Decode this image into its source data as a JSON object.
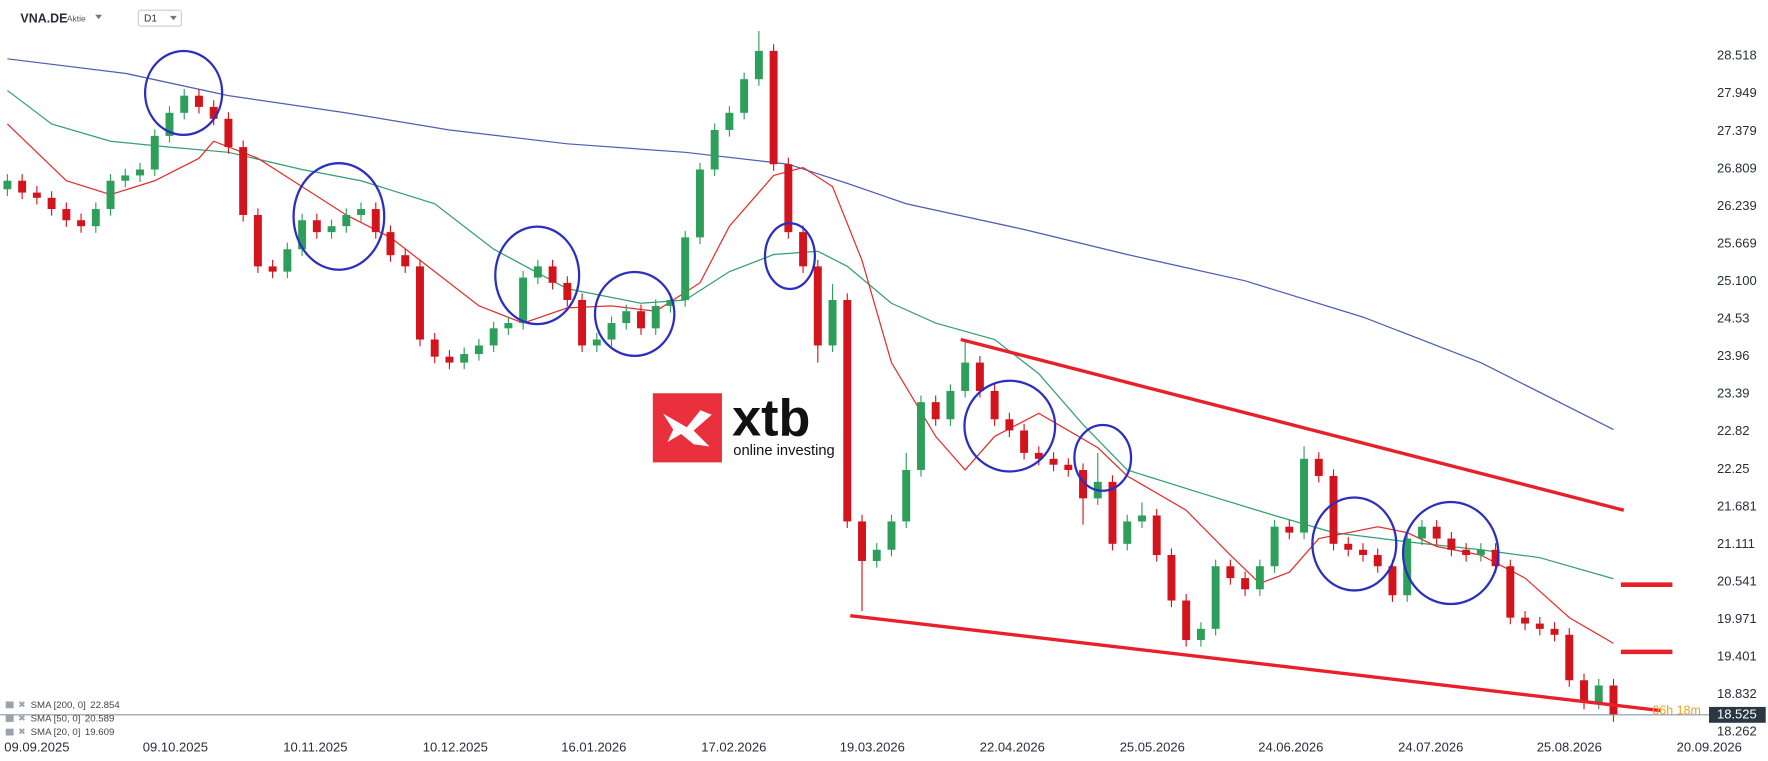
{
  "header": {
    "symbol": "VNA.DE",
    "kind": "Aktie",
    "timeframe": "D1"
  },
  "logo": {
    "brand": "xtb",
    "tagline": "online investing"
  },
  "chart_data": {
    "type": "candlestick",
    "colors": {
      "up": "#2e9e5b",
      "down": "#d3141d"
    },
    "open": [
      26.5,
      26.63,
      26.45,
      26.37,
      26.2,
      26.03,
      25.94,
      26.2,
      26.63,
      26.71,
      26.8,
      27.31,
      27.66,
      27.92,
      27.75,
      27.57,
      27.14,
      26.11,
      25.33,
      25.25,
      25.59,
      26.03,
      25.85,
      25.94,
      26.11,
      26.2,
      25.85,
      25.5,
      25.33,
      24.22,
      23.96,
      23.87,
      24.0,
      24.13,
      24.39,
      24.47,
      25.16,
      25.33,
      25.08,
      24.82,
      24.13,
      24.22,
      24.47,
      24.65,
      24.39,
      24.73,
      24.82,
      25.77,
      26.8,
      27.4,
      27.66,
      28.17,
      28.6,
      26.88,
      25.85,
      25.33,
      24.13,
      24.82,
      21.46,
      20.86,
      21.03,
      21.46,
      22.24,
      23.27,
      23.01,
      23.44,
      23.87,
      23.44,
      23.01,
      22.84,
      22.5,
      22.41,
      22.32,
      22.24,
      21.81,
      22.06,
      21.12,
      21.46,
      21.55,
      20.95,
      20.26,
      19.66,
      19.83,
      20.78,
      20.6,
      20.43,
      20.78,
      21.38,
      21.29,
      22.41,
      22.15,
      21.12,
      21.03,
      20.95,
      20.78,
      20.34,
      21.2,
      21.38,
      21.2,
      21.03,
      20.95,
      21.03,
      20.78,
      20.0,
      19.91,
      19.83,
      19.74,
      19.05,
      18.71,
      18.97
    ],
    "high": [
      26.73,
      26.73,
      26.55,
      26.47,
      26.3,
      26.13,
      26.3,
      26.73,
      26.81,
      26.9,
      27.41,
      27.76,
      28.02,
      28.02,
      27.85,
      27.67,
      27.24,
      26.21,
      25.43,
      25.69,
      26.13,
      26.13,
      26.04,
      26.21,
      26.3,
      26.3,
      25.95,
      25.6,
      25.43,
      24.32,
      24.06,
      24.1,
      24.23,
      24.49,
      24.57,
      25.26,
      25.43,
      25.43,
      25.18,
      24.92,
      24.32,
      24.57,
      24.75,
      24.75,
      24.83,
      24.92,
      25.87,
      26.9,
      27.5,
      27.76,
      28.27,
      28.9,
      28.7,
      26.98,
      25.95,
      25.43,
      25.06,
      24.92,
      21.56,
      21.13,
      21.56,
      22.5,
      23.37,
      23.37,
      23.54,
      24.2,
      23.97,
      23.54,
      23.11,
      22.94,
      22.6,
      22.51,
      22.42,
      22.34,
      22.5,
      22.16,
      21.56,
      21.75,
      21.65,
      21.05,
      20.36,
      19.93,
      20.88,
      20.88,
      20.7,
      20.88,
      21.48,
      21.48,
      22.6,
      22.51,
      22.25,
      21.22,
      21.13,
      21.05,
      20.88,
      21.3,
      21.48,
      21.48,
      21.3,
      21.13,
      21.13,
      21.13,
      20.88,
      20.1,
      20.01,
      19.93,
      19.84,
      19.15,
      19.07,
      19.07
    ],
    "low": [
      26.4,
      26.35,
      26.27,
      26.1,
      25.93,
      25.84,
      25.84,
      26.1,
      26.53,
      26.61,
      26.7,
      27.21,
      27.56,
      27.65,
      27.47,
      27.04,
      26.01,
      25.23,
      25.15,
      25.15,
      25.49,
      25.75,
      25.75,
      25.84,
      26.01,
      25.75,
      25.4,
      25.23,
      24.12,
      23.86,
      23.77,
      23.77,
      23.9,
      24.03,
      24.29,
      24.37,
      25.06,
      24.98,
      24.72,
      24.03,
      24.03,
      24.12,
      24.37,
      24.29,
      24.29,
      24.63,
      24.72,
      25.67,
      26.7,
      27.3,
      27.56,
      28.07,
      26.78,
      25.75,
      25.23,
      23.87,
      24.03,
      21.36,
      20.1,
      20.76,
      20.93,
      21.36,
      22.14,
      22.91,
      22.91,
      23.34,
      23.34,
      22.91,
      22.74,
      22.4,
      22.31,
      22.22,
      22.14,
      21.41,
      21.71,
      21.02,
      21.02,
      21.36,
      20.85,
      20.16,
      19.56,
      19.56,
      19.73,
      20.5,
      20.33,
      20.33,
      20.68,
      21.19,
      21.19,
      22.05,
      21.02,
      20.93,
      20.85,
      20.68,
      20.24,
      20.24,
      21.1,
      21.1,
      20.93,
      20.85,
      20.85,
      20.68,
      19.9,
      19.81,
      19.73,
      19.64,
      18.95,
      18.61,
      18.61,
      18.42
    ],
    "close": [
      26.63,
      26.45,
      26.37,
      26.2,
      26.03,
      25.94,
      26.2,
      26.63,
      26.71,
      26.8,
      27.31,
      27.66,
      27.92,
      27.75,
      27.57,
      27.14,
      26.11,
      25.33,
      25.25,
      25.59,
      26.03,
      25.85,
      25.94,
      26.11,
      26.2,
      25.85,
      25.5,
      25.33,
      24.22,
      23.96,
      23.87,
      24.0,
      24.13,
      24.39,
      24.47,
      25.16,
      25.33,
      25.08,
      24.82,
      24.13,
      24.22,
      24.47,
      24.65,
      24.39,
      24.73,
      24.82,
      25.77,
      26.8,
      27.4,
      27.66,
      28.17,
      28.6,
      26.88,
      25.85,
      25.33,
      24.13,
      24.82,
      21.46,
      20.86,
      21.03,
      21.46,
      22.24,
      23.27,
      23.01,
      23.44,
      23.87,
      23.44,
      23.01,
      22.84,
      22.5,
      22.41,
      22.32,
      22.24,
      21.81,
      22.06,
      21.12,
      21.46,
      21.55,
      20.95,
      20.26,
      19.66,
      19.83,
      20.78,
      20.6,
      20.43,
      20.78,
      21.38,
      21.29,
      22.41,
      22.15,
      21.12,
      21.03,
      20.95,
      20.78,
      20.34,
      21.2,
      21.38,
      21.2,
      21.03,
      20.95,
      21.03,
      20.78,
      20.0,
      19.91,
      19.83,
      19.74,
      19.05,
      18.71,
      18.97,
      18.525
    ],
    "xlim": [
      -0.5,
      116.1
    ],
    "ylim": [
      18.16,
      29.2
    ],
    "xticks": [
      {
        "value": 2.0,
        "label": "09.09.2025"
      },
      {
        "value": 11.4,
        "label": "09.10.2025"
      },
      {
        "value": 20.9,
        "label": "10.11.2025"
      },
      {
        "value": 30.4,
        "label": "10.12.2025"
      },
      {
        "value": 39.8,
        "label": "16.01.2026"
      },
      {
        "value": 49.3,
        "label": "17.02.2026"
      },
      {
        "value": 58.7,
        "label": "19.03.2026"
      },
      {
        "value": 68.2,
        "label": "22.04.2026"
      },
      {
        "value": 77.7,
        "label": "25.05.2026"
      },
      {
        "value": 87.1,
        "label": "24.06.2026"
      },
      {
        "value": 96.6,
        "label": "24.07.2026"
      },
      {
        "value": 106.0,
        "label": "25.08.2026"
      },
      {
        "value": 115.5,
        "label": "20.09.2026"
      }
    ],
    "yticks": [
      28.518,
      27.949,
      27.379,
      26.809,
      26.239,
      25.669,
      {
        "value": 25.1,
        "label": "25.100"
      },
      24.53,
      23.96,
      23.39,
      22.82,
      22.25,
      21.681,
      21.111,
      20.541,
      19.971,
      19.401,
      18.832,
      18.262
    ],
    "indicators": [
      {
        "name": "SMA [200, 0]",
        "last": 22.854,
        "color": "#4f5fb0",
        "x": [
          0,
          8,
          15,
          23,
          30,
          38,
          46,
          53,
          57,
          61,
          69,
          76,
          84,
          92,
          100,
          109
        ],
        "values": [
          28.48,
          28.26,
          27.92,
          27.66,
          27.4,
          27.19,
          27.06,
          26.88,
          26.59,
          26.28,
          25.89,
          25.51,
          25.11,
          24.56,
          23.87,
          22.854
        ]
      },
      {
        "name": "SMA [50, 0]",
        "last": 20.589,
        "color": "#33a070",
        "x": [
          0,
          3,
          7,
          11,
          15,
          20,
          24,
          29,
          33,
          38,
          43,
          46,
          49,
          52,
          55,
          57,
          60,
          63,
          67,
          70,
          73,
          76,
          81,
          86,
          90,
          95,
          100,
          104,
          109
        ],
        "values": [
          28.0,
          27.49,
          27.23,
          27.14,
          27.06,
          26.8,
          26.63,
          26.28,
          25.59,
          24.99,
          24.77,
          24.82,
          25.25,
          25.51,
          25.56,
          25.33,
          24.77,
          24.47,
          24.22,
          23.7,
          22.93,
          22.24,
          21.89,
          21.55,
          21.29,
          21.15,
          21.03,
          20.91,
          20.589
        ]
      },
      {
        "name": "SMA [20, 0]",
        "last": 19.609,
        "color": "#e2302c",
        "x": [
          0,
          4,
          7,
          10,
          13,
          14,
          17,
          20,
          23,
          26,
          29,
          32,
          35,
          38,
          41,
          44,
          47,
          49,
          52,
          54,
          56,
          58,
          60,
          63,
          65,
          67,
          70,
          72,
          74,
          76,
          80,
          83,
          85,
          87,
          89,
          93,
          95,
          97,
          100,
          103,
          106,
          109
        ],
        "values": [
          27.49,
          26.63,
          26.42,
          26.63,
          26.97,
          27.23,
          26.97,
          26.54,
          26.11,
          25.77,
          25.25,
          24.73,
          24.47,
          24.7,
          24.73,
          24.65,
          25.08,
          25.94,
          26.71,
          26.83,
          26.54,
          25.42,
          23.87,
          22.75,
          22.24,
          22.75,
          23.1,
          22.84,
          22.58,
          22.15,
          21.63,
          20.95,
          20.52,
          20.69,
          21.2,
          21.38,
          21.29,
          21.08,
          20.95,
          20.6,
          20.0,
          19.609
        ]
      }
    ],
    "trend_lines": [
      {
        "color": "#e8202a",
        "x": [
          64.7,
          109.7
        ],
        "values": [
          24.22,
          21.63
        ]
      },
      {
        "color": "#e8202a",
        "x": [
          57.2,
          112.2
        ],
        "values": [
          20.03,
          18.59
        ]
      }
    ],
    "levels": [
      {
        "color": "#e8202a",
        "x": [
          109.5,
          113
        ],
        "value": 20.5
      },
      {
        "color": "#e8202a",
        "x": [
          109.5,
          113
        ],
        "value": 19.48
      }
    ],
    "last_price": 18.525,
    "countdown": "06h 18m"
  }
}
